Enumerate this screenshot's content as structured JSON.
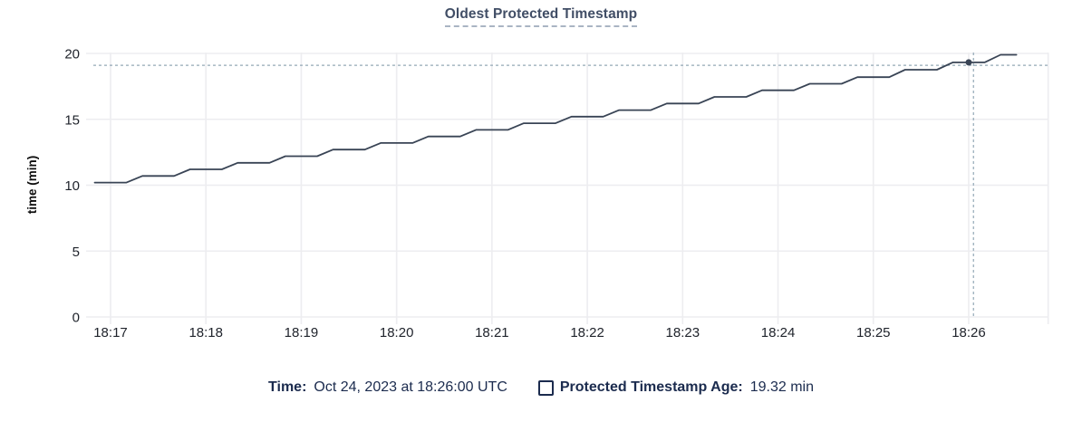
{
  "title": "Oldest Protected Timestamp",
  "legend": {
    "time_label": "Time:",
    "time_value": "Oct 24, 2023 at 18:26:00 UTC",
    "age_label": "Protected Timestamp Age:",
    "age_value": "19.32 min"
  },
  "chart_data": {
    "type": "line",
    "title": "Oldest Protected Timestamp",
    "xlabel": "",
    "ylabel": "time (min)",
    "ylim": [
      0,
      20
    ],
    "yticks": [
      0,
      5,
      10,
      15,
      20
    ],
    "grid": true,
    "legend_position": "bottom",
    "x_reference_time": "18:17:00",
    "x_domain_seconds": [
      -10,
      590
    ],
    "xticks": [
      {
        "t": 0,
        "label": "18:17"
      },
      {
        "t": 60,
        "label": "18:18"
      },
      {
        "t": 120,
        "label": "18:19"
      },
      {
        "t": 180,
        "label": "18:20"
      },
      {
        "t": 240,
        "label": "18:21"
      },
      {
        "t": 300,
        "label": "18:22"
      },
      {
        "t": 360,
        "label": "18:23"
      },
      {
        "t": 420,
        "label": "18:24"
      },
      {
        "t": 480,
        "label": "18:25"
      },
      {
        "t": 540,
        "label": "18:26"
      }
    ],
    "series": [
      {
        "name": "Protected Timestamp Age",
        "unit": "min",
        "points": [
          [
            -10,
            10.2
          ],
          [
            0,
            10.2
          ],
          [
            10,
            10.2
          ],
          [
            20,
            10.7
          ],
          [
            30,
            10.7
          ],
          [
            40,
            10.7
          ],
          [
            50,
            11.2
          ],
          [
            60,
            11.2
          ],
          [
            70,
            11.2
          ],
          [
            80,
            11.7
          ],
          [
            90,
            11.7
          ],
          [
            100,
            11.7
          ],
          [
            110,
            12.2
          ],
          [
            120,
            12.2
          ],
          [
            130,
            12.2
          ],
          [
            140,
            12.7
          ],
          [
            150,
            12.7
          ],
          [
            160,
            12.7
          ],
          [
            170,
            13.2
          ],
          [
            180,
            13.2
          ],
          [
            190,
            13.2
          ],
          [
            200,
            13.7
          ],
          [
            210,
            13.7
          ],
          [
            220,
            13.7
          ],
          [
            230,
            14.2
          ],
          [
            240,
            14.2
          ],
          [
            250,
            14.2
          ],
          [
            260,
            14.7
          ],
          [
            270,
            14.7
          ],
          [
            280,
            14.7
          ],
          [
            290,
            15.2
          ],
          [
            300,
            15.2
          ],
          [
            310,
            15.2
          ],
          [
            320,
            15.7
          ],
          [
            330,
            15.7
          ],
          [
            340,
            15.7
          ],
          [
            350,
            16.2
          ],
          [
            360,
            16.2
          ],
          [
            370,
            16.2
          ],
          [
            380,
            16.7
          ],
          [
            390,
            16.7
          ],
          [
            400,
            16.7
          ],
          [
            410,
            17.2
          ],
          [
            420,
            17.2
          ],
          [
            430,
            17.2
          ],
          [
            440,
            17.7
          ],
          [
            450,
            17.7
          ],
          [
            460,
            17.7
          ],
          [
            470,
            18.2
          ],
          [
            480,
            18.2
          ],
          [
            490,
            18.2
          ],
          [
            500,
            18.76
          ],
          [
            510,
            18.76
          ],
          [
            520,
            18.76
          ],
          [
            530,
            19.32
          ],
          [
            540,
            19.32
          ],
          [
            550,
            19.32
          ],
          [
            560,
            19.9
          ],
          [
            570,
            19.9
          ]
        ]
      }
    ],
    "highlight": {
      "point": {
        "t": 540,
        "time_label": "Oct 24, 2023 at 18:26:00 UTC",
        "value": 19.32,
        "value_label": "19.32 min"
      },
      "crosshair": {
        "t": 543,
        "value": 19.1
      }
    },
    "colors": {
      "line": "#394455",
      "dot": "#394455",
      "grid": "#ededf0",
      "crosshair": "#93a8b6",
      "axis_text": "#20242c",
      "title": "#414e66",
      "legend_text": "#1b2b4e"
    }
  }
}
